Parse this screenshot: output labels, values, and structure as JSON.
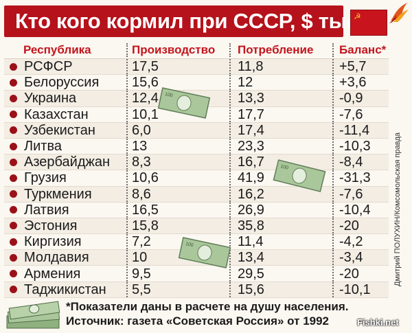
{
  "title": "Кто кого кормил при СССР, $ тыс.",
  "headers": {
    "republic": "Республика",
    "production": "Производство",
    "consumption": "Потребление",
    "balance": "Баланс*"
  },
  "rows": [
    {
      "republic": "РСФСР",
      "production": "17,5",
      "consumption": "11,8",
      "balance": "+5,7"
    },
    {
      "republic": "Белоруссия",
      "production": "15,6",
      "consumption": "12",
      "balance": "+3,6"
    },
    {
      "republic": "Украина",
      "production": "12,4",
      "consumption": "13,3",
      "balance": "-0,9"
    },
    {
      "republic": "Казахстан",
      "production": "10,1",
      "consumption": "17,7",
      "balance": "-7,6"
    },
    {
      "republic": "Узбекистан",
      "production": "6,0",
      "consumption": "17,4",
      "balance": "-11,4"
    },
    {
      "republic": "Литва",
      "production": "13",
      "consumption": "23,3",
      "balance": "-10,3"
    },
    {
      "republic": "Азербайджан",
      "production": "8,3",
      "consumption": "16,7",
      "balance": "-8,4"
    },
    {
      "republic": "Грузия",
      "production": "10,6",
      "consumption": "41,9",
      "balance": "-31,3"
    },
    {
      "republic": "Туркмения",
      "production": "8,6",
      "consumption": "16,2",
      "balance": "-7,6"
    },
    {
      "republic": "Латвия",
      "production": "16,5",
      "consumption": "26,9",
      "balance": "-10,4"
    },
    {
      "republic": "Эстония",
      "production": "15,8",
      "consumption": "35,8",
      "balance": "-20"
    },
    {
      "republic": "Киргизия",
      "production": "7,2",
      "consumption": "11,4",
      "balance": "-4,2"
    },
    {
      "republic": "Молдавия",
      "production": "10",
      "consumption": "13,4",
      "balance": "-3,4"
    },
    {
      "republic": "Армения",
      "production": "9,5",
      "consumption": "29,5",
      "balance": "-20"
    },
    {
      "republic": "Таджикистан",
      "production": "5,5",
      "consumption": "15,6",
      "balance": "-10,1"
    }
  ],
  "credit": "Дмитрий ПОЛУХИН/Комсомольская правда",
  "footnote_1": "*Показатели даны в расчете на душу населения.",
  "footnote_2": "Источник: газета «Советская Россия» от 1992",
  "watermark": "Fishki.net",
  "bill_denomination": "100",
  "colors": {
    "title_bg": "#b5121b",
    "header_text": "#c2151d",
    "bullet": "#9b1118",
    "bill": "#a9c79a"
  },
  "icons": [
    "ussr-flag-icon",
    "firebird-icon",
    "dollar-bill-icon",
    "money-stack-icon"
  ]
}
